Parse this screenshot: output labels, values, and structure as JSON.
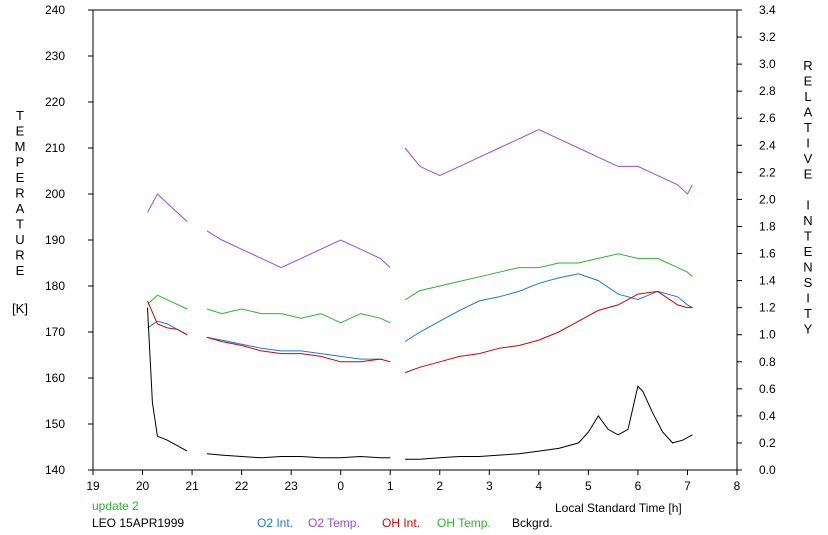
{
  "chart_data": {
    "type": "line",
    "title": "",
    "xlabel": "Local Standard Time [h]",
    "ylabel_left_letters": [
      "T",
      "E",
      "M",
      "P",
      "E",
      "R",
      "A",
      "T",
      "U",
      "R",
      "E"
    ],
    "ylabel_left_unit": "[K]",
    "ylabel_right_letters": [
      "R",
      "E",
      "L",
      "A",
      "T",
      "I",
      "V",
      "E",
      "",
      "I",
      "N",
      "T",
      "E",
      "N",
      "S",
      "I",
      "T",
      "Y"
    ],
    "x_ticks": [
      "19",
      "20",
      "21",
      "22",
      "23",
      "0",
      "1",
      "2",
      "3",
      "4",
      "5",
      "6",
      "7",
      "8"
    ],
    "x_range": [
      19,
      32
    ],
    "y_left_ticks": [
      "140",
      "150",
      "160",
      "170",
      "180",
      "190",
      "200",
      "210",
      "220",
      "230",
      "240"
    ],
    "y_left_range": [
      140,
      240
    ],
    "y_right_ticks": [
      "0.0",
      "0.2",
      "0.4",
      "0.6",
      "0.8",
      "1.0",
      "1.2",
      "1.4",
      "1.6",
      "1.8",
      "2.0",
      "2.2",
      "2.4",
      "2.6",
      "2.8",
      "3.0",
      "3.2",
      "3.4"
    ],
    "y_right_range": [
      0.0,
      3.4
    ],
    "grid": false,
    "legend_placement": "bottom",
    "note": "update 2",
    "station_label": "LEO 15APR1999",
    "series": [
      {
        "name": "O2 Int.",
        "axis": "right",
        "color": "#1a78d8",
        "x": [
          20.1,
          20.3,
          20.5,
          20.7,
          20.9,
          21.3,
          21.6,
          22.0,
          22.4,
          22.8,
          23.2,
          23.6,
          24.0,
          24.4,
          24.8,
          25.0,
          25.3,
          25.6,
          26.0,
          26.4,
          26.8,
          27.2,
          27.6,
          28.0,
          28.4,
          28.8,
          29.2,
          29.6,
          30.0,
          30.4,
          30.8,
          31.0,
          31.1
        ],
        "y": [
          1.05,
          1.1,
          1.08,
          1.04,
          1.0,
          0.98,
          0.96,
          0.93,
          0.9,
          0.88,
          0.88,
          0.86,
          0.84,
          0.82,
          0.82,
          0.8,
          0.95,
          1.02,
          1.1,
          1.18,
          1.25,
          1.28,
          1.32,
          1.38,
          1.42,
          1.45,
          1.4,
          1.3,
          1.26,
          1.32,
          1.28,
          1.22,
          1.2
        ]
      },
      {
        "name": "O2 Temp.",
        "axis": "left",
        "color": "#9b4bd8",
        "x": [
          20.1,
          20.3,
          20.5,
          20.7,
          20.9,
          21.3,
          21.6,
          22.0,
          22.4,
          22.8,
          23.2,
          23.6,
          24.0,
          24.4,
          24.8,
          25.0,
          25.3,
          25.6,
          26.0,
          26.4,
          26.8,
          27.2,
          27.6,
          28.0,
          28.4,
          28.8,
          29.2,
          29.6,
          30.0,
          30.4,
          30.8,
          31.0,
          31.1
        ],
        "y": [
          196,
          200,
          198,
          196,
          194,
          192,
          190,
          188,
          186,
          184,
          186,
          188,
          190,
          188,
          186,
          184,
          210,
          206,
          204,
          206,
          208,
          210,
          212,
          214,
          212,
          210,
          208,
          206,
          206,
          204,
          202,
          200,
          202
        ]
      },
      {
        "name": "OH Int.",
        "axis": "right",
        "color": "#d80000",
        "x": [
          20.1,
          20.3,
          20.5,
          20.7,
          20.9,
          21.3,
          21.6,
          22.0,
          22.4,
          22.8,
          23.2,
          23.6,
          24.0,
          24.4,
          24.8,
          25.0,
          25.3,
          25.6,
          26.0,
          26.4,
          26.8,
          27.2,
          27.6,
          28.0,
          28.4,
          28.8,
          29.2,
          29.6,
          30.0,
          30.4,
          30.8,
          31.0,
          31.1
        ],
        "y": [
          1.25,
          1.08,
          1.05,
          1.04,
          1.0,
          0.98,
          0.95,
          0.92,
          0.88,
          0.86,
          0.86,
          0.84,
          0.8,
          0.8,
          0.82,
          0.8,
          0.72,
          0.76,
          0.8,
          0.84,
          0.86,
          0.9,
          0.92,
          0.96,
          1.02,
          1.1,
          1.18,
          1.22,
          1.3,
          1.32,
          1.22,
          1.2,
          1.2
        ]
      },
      {
        "name": "OH Temp.",
        "axis": "left",
        "color": "#2ab52a",
        "x": [
          20.1,
          20.3,
          20.5,
          20.7,
          20.9,
          21.3,
          21.6,
          22.0,
          22.4,
          22.8,
          23.2,
          23.6,
          24.0,
          24.4,
          24.8,
          25.0,
          25.3,
          25.6,
          26.0,
          26.4,
          26.8,
          27.2,
          27.6,
          28.0,
          28.4,
          28.8,
          29.2,
          29.6,
          30.0,
          30.4,
          30.8,
          31.0,
          31.1
        ],
        "y": [
          176,
          178,
          177,
          176,
          175,
          175,
          174,
          175,
          174,
          174,
          173,
          174,
          172,
          174,
          173,
          172,
          177,
          179,
          180,
          181,
          182,
          183,
          184,
          184,
          185,
          185,
          186,
          187,
          186,
          186,
          184,
          183,
          182
        ]
      },
      {
        "name": "Bckgrd.",
        "axis": "right",
        "color": "#000000",
        "x": [
          20.1,
          20.2,
          20.3,
          20.5,
          20.7,
          20.9,
          21.3,
          21.6,
          22.0,
          22.4,
          22.8,
          23.2,
          23.6,
          24.0,
          24.4,
          24.8,
          25.0,
          25.3,
          25.6,
          26.0,
          26.4,
          26.8,
          27.2,
          27.6,
          28.0,
          28.4,
          28.8,
          29.0,
          29.2,
          29.4,
          29.6,
          29.8,
          30.0,
          30.1,
          30.3,
          30.5,
          30.7,
          30.9,
          31.1
        ],
        "y": [
          1.2,
          0.5,
          0.25,
          0.22,
          0.18,
          0.14,
          0.12,
          0.11,
          0.1,
          0.09,
          0.1,
          0.1,
          0.09,
          0.09,
          0.1,
          0.09,
          0.09,
          0.08,
          0.08,
          0.09,
          0.1,
          0.1,
          0.11,
          0.12,
          0.14,
          0.16,
          0.2,
          0.28,
          0.4,
          0.3,
          0.26,
          0.3,
          0.62,
          0.58,
          0.42,
          0.28,
          0.2,
          0.22,
          0.26
        ]
      }
    ]
  }
}
